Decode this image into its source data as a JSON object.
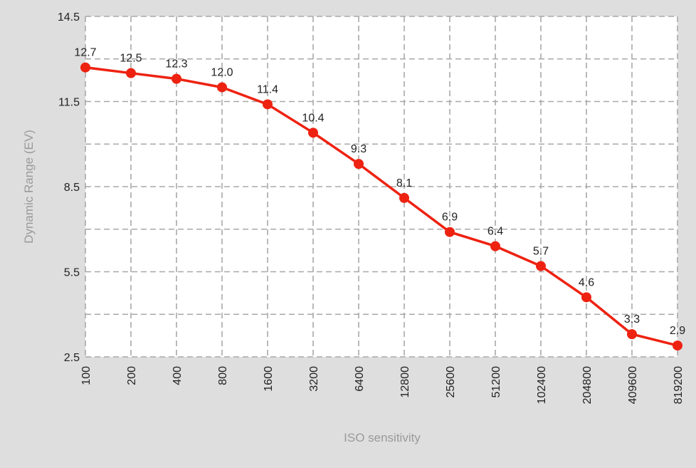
{
  "chart_data": {
    "type": "line",
    "title": "",
    "xlabel": "ISO sensitivity",
    "ylabel": "Dynamic Range (EV)",
    "categories": [
      "100",
      "200",
      "400",
      "800",
      "1600",
      "3200",
      "6400",
      "12800",
      "25600",
      "51200",
      "102400",
      "204800",
      "409600",
      "819200"
    ],
    "series": [
      {
        "values": [
          12.7,
          12.5,
          12.3,
          12.0,
          11.4,
          10.4,
          9.3,
          8.1,
          6.9,
          6.4,
          5.7,
          4.6,
          3.3,
          2.9
        ],
        "labels": [
          "12.7",
          "12.5",
          "12.3",
          "12.0",
          "11.4",
          "10.4",
          "9.3",
          "8.1",
          "6.9",
          "6.4",
          "5.7",
          "4.6",
          "3.3",
          "2.9"
        ],
        "color": "#ee2211"
      }
    ],
    "ylim": [
      2.5,
      14.5
    ],
    "yticks": [
      "14.5",
      "11.5",
      "8.5",
      "5.5",
      "2.5"
    ],
    "minor_grid_step": 1.5,
    "grid": true,
    "colors": {
      "background": "#dedede",
      "plot_background": "#ffffff",
      "grid": "#a8a8a8",
      "axis_text": "#222222",
      "axis_title": "#9a9a9a"
    }
  }
}
